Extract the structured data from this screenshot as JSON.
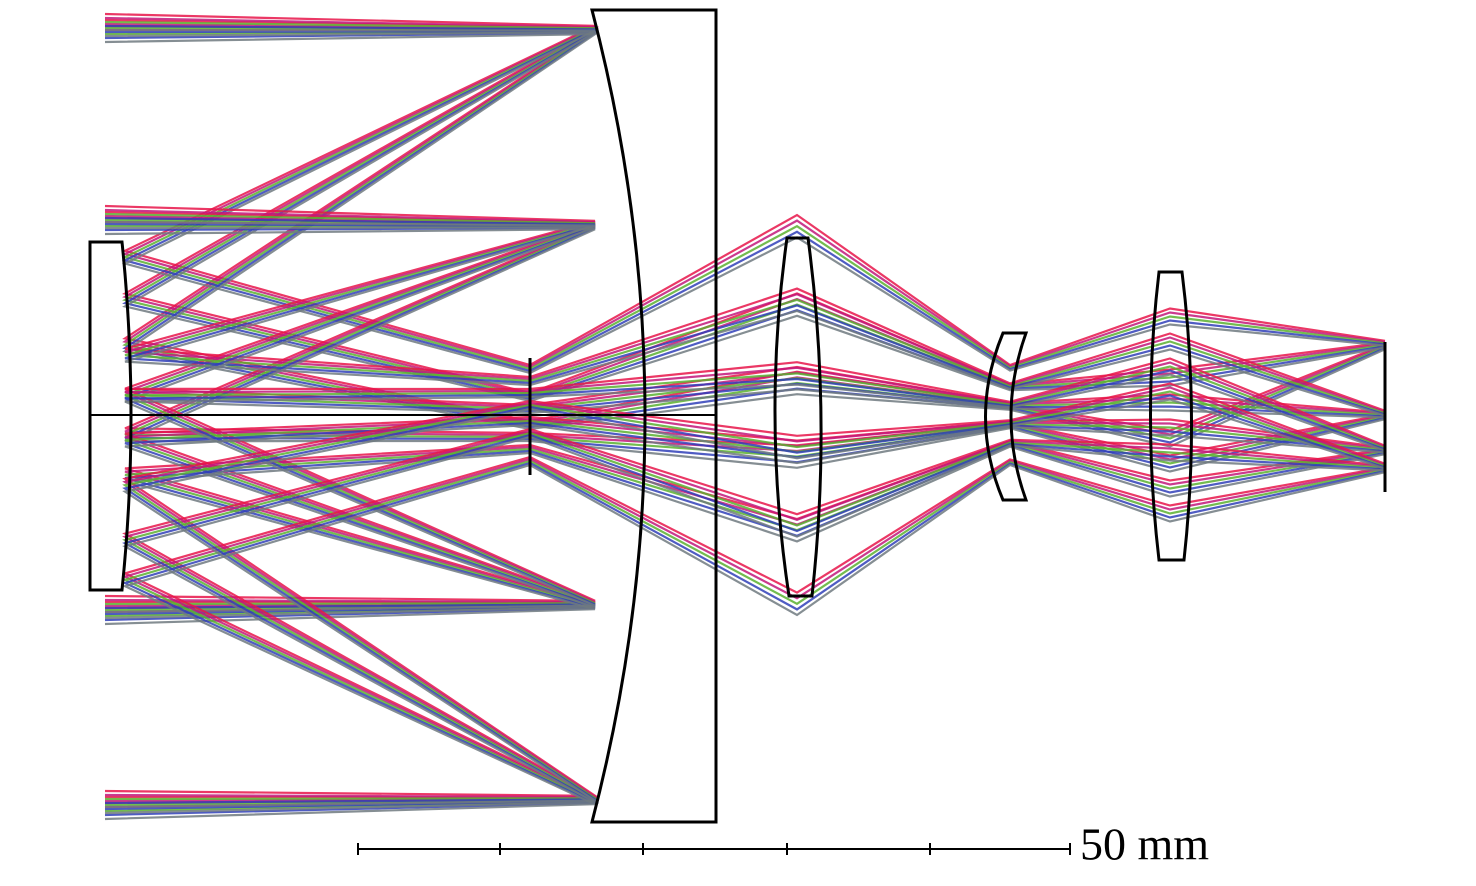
{
  "scale_bar": {
    "label": "50 mm"
  }
}
